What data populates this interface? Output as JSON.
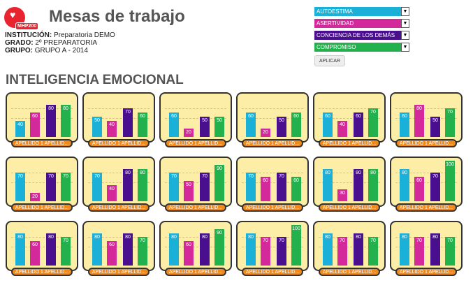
{
  "header": {
    "logo_text": "MHP200",
    "title": "Mesas de trabajo"
  },
  "info": {
    "institution_label": "INSTITUCIÓN:",
    "institution_value": "Preparatoria DEMO",
    "grade_label": "GRADO:",
    "grade_value": "2º PREPARATORIA",
    "group_label": "GRUPO:",
    "group_value": "GRUPO A - 2014"
  },
  "filters": [
    {
      "label": "AUTOESTIMA",
      "color": "#1ab0d8"
    },
    {
      "label": "ASERTIVIDAD",
      "color": "#d4299b"
    },
    {
      "label": "CONCIENCIA DE LOS DEMÁS",
      "color": "#4a0f8f"
    },
    {
      "label": "COMPROMISO",
      "color": "#22b14c"
    }
  ],
  "apply_label": "APLICAR",
  "section_title": "INTELIGENCIA EMOCIONAL",
  "series_colors": [
    "#1ab0d8",
    "#d4299b",
    "#4a0f8f",
    "#22b14c"
  ],
  "chart_data": [
    {
      "type": "bar",
      "categories": [
        "AUTOESTIMA",
        "ASERTIVIDAD",
        "CONCIENCIA DE LOS DEMÁS",
        "COMPROMISO"
      ],
      "values": [
        40,
        60,
        80,
        80
      ],
      "label": "APELLIDO 1 APELLID..."
    },
    {
      "type": "bar",
      "categories": [
        "AUTOESTIMA",
        "ASERTIVIDAD",
        "CONCIENCIA DE LOS DEMÁS",
        "COMPROMISO"
      ],
      "values": [
        50,
        40,
        70,
        60
      ],
      "label": "APELLIDO 1 APELLID..."
    },
    {
      "type": "bar",
      "categories": [
        "AUTOESTIMA",
        "ASERTIVIDAD",
        "CONCIENCIA DE LOS DEMÁS",
        "COMPROMISO"
      ],
      "values": [
        60,
        20,
        50,
        50
      ],
      "label": "APELLIDO 1 APELLID..."
    },
    {
      "type": "bar",
      "categories": [
        "AUTOESTIMA",
        "ASERTIVIDAD",
        "CONCIENCIA DE LOS DEMÁS",
        "COMPROMISO"
      ],
      "values": [
        60,
        20,
        50,
        60
      ],
      "label": "APELLIDO 1 APELLID..."
    },
    {
      "type": "bar",
      "categories": [
        "AUTOESTIMA",
        "ASERTIVIDAD",
        "CONCIENCIA DE LOS DEMÁS",
        "COMPROMISO"
      ],
      "values": [
        60,
        40,
        60,
        70
      ],
      "label": "APELLIDO 1 APELLID..."
    },
    {
      "type": "bar",
      "categories": [
        "AUTOESTIMA",
        "ASERTIVIDAD",
        "CONCIENCIA DE LOS DEMÁS",
        "COMPROMISO"
      ],
      "values": [
        60,
        80,
        50,
        70
      ],
      "label": "APELLIDO 1 APELLID..."
    },
    {
      "type": "bar",
      "categories": [
        "AUTOESTIMA",
        "ASERTIVIDAD",
        "CONCIENCIA DE LOS DEMÁS",
        "COMPROMISO"
      ],
      "values": [
        70,
        20,
        70,
        70
      ],
      "label": "APELLIDO 1 APELLID..."
    },
    {
      "type": "bar",
      "categories": [
        "AUTOESTIMA",
        "ASERTIVIDAD",
        "CONCIENCIA DE LOS DEMÁS",
        "COMPROMISO"
      ],
      "values": [
        70,
        40,
        80,
        80
      ],
      "label": "APELLIDO 1 APELLID..."
    },
    {
      "type": "bar",
      "categories": [
        "AUTOESTIMA",
        "ASERTIVIDAD",
        "CONCIENCIA DE LOS DEMÁS",
        "COMPROMISO"
      ],
      "values": [
        70,
        50,
        70,
        90
      ],
      "label": "APELLIDO 1 APELLID..."
    },
    {
      "type": "bar",
      "categories": [
        "AUTOESTIMA",
        "ASERTIVIDAD",
        "CONCIENCIA DE LOS DEMÁS",
        "COMPROMISO"
      ],
      "values": [
        70,
        60,
        70,
        60
      ],
      "label": "APELLIDO 1 APELLID..."
    },
    {
      "type": "bar",
      "categories": [
        "AUTOESTIMA",
        "ASERTIVIDAD",
        "CONCIENCIA DE LOS DEMÁS",
        "COMPROMISO"
      ],
      "values": [
        80,
        30,
        80,
        80
      ],
      "label": "APELLIDO 1 APELLID..."
    },
    {
      "type": "bar",
      "categories": [
        "AUTOESTIMA",
        "ASERTIVIDAD",
        "CONCIENCIA DE LOS DEMÁS",
        "COMPROMISO"
      ],
      "values": [
        80,
        60,
        70,
        100
      ],
      "label": "APELLIDO 1 APELLID..."
    },
    {
      "type": "bar",
      "categories": [
        "AUTOESTIMA",
        "ASERTIVIDAD",
        "CONCIENCIA DE LOS DEMÁS",
        "COMPROMISO"
      ],
      "values": [
        80,
        60,
        80,
        70
      ],
      "label": "APELLIDO 1 APELLID..."
    },
    {
      "type": "bar",
      "categories": [
        "AUTOESTIMA",
        "ASERTIVIDAD",
        "CONCIENCIA DE LOS DEMÁS",
        "COMPROMISO"
      ],
      "values": [
        80,
        60,
        80,
        70
      ],
      "label": "APELLIDO 1 APELLID..."
    },
    {
      "type": "bar",
      "categories": [
        "AUTOESTIMA",
        "ASERTIVIDAD",
        "CONCIENCIA DE LOS DEMÁS",
        "COMPROMISO"
      ],
      "values": [
        80,
        60,
        80,
        90
      ],
      "label": "APELLIDO 1 APELLID..."
    },
    {
      "type": "bar",
      "categories": [
        "AUTOESTIMA",
        "ASERTIVIDAD",
        "CONCIENCIA DE LOS DEMÁS",
        "COMPROMISO"
      ],
      "values": [
        80,
        70,
        70,
        100
      ],
      "label": "APELLIDO 1 APELLID..."
    },
    {
      "type": "bar",
      "categories": [
        "AUTOESTIMA",
        "ASERTIVIDAD",
        "CONCIENCIA DE LOS DEMÁS",
        "COMPROMISO"
      ],
      "values": [
        80,
        70,
        80,
        70
      ],
      "label": "APELLIDO 1 APELLID..."
    },
    {
      "type": "bar",
      "categories": [
        "AUTOESTIMA",
        "ASERTIVIDAD",
        "CONCIENCIA DE LOS DEMÁS",
        "COMPROMISO"
      ],
      "values": [
        80,
        70,
        80,
        70
      ],
      "label": "APELLIDO 1 APELLID..."
    }
  ]
}
